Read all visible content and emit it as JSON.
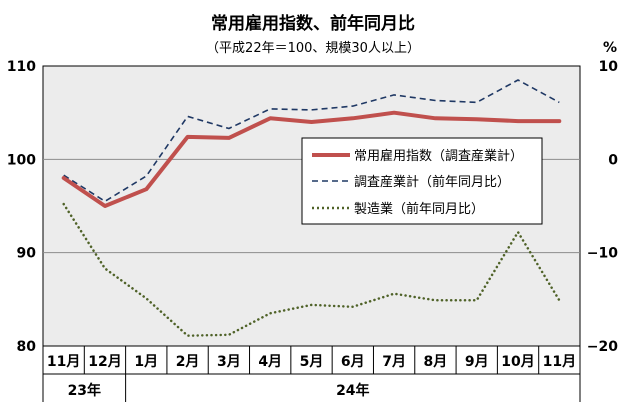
{
  "chart_data": {
    "type": "line",
    "title": "常用雇用指数、前年同月比",
    "subtitle": "（平成22年＝100、規模30人以上）",
    "y_left": {
      "min": 80,
      "max": 110,
      "ticks": [
        "80",
        "90",
        "100",
        "110"
      ]
    },
    "y_right": {
      "min": -20,
      "max": 10,
      "ticks": [
        "−20",
        "−10",
        "0",
        "10"
      ],
      "unit": "%"
    },
    "categories": [
      "11月",
      "12月",
      "1月",
      "2月",
      "3月",
      "4月",
      "5月",
      "6月",
      "7月",
      "8月",
      "9月",
      "10月",
      "11月"
    ],
    "year_labels": [
      {
        "label": "23年",
        "start": 0,
        "end": 1
      },
      {
        "label": "24年",
        "start": 2,
        "end": 12
      }
    ],
    "legend_placement": "right-middle",
    "grid": true,
    "series": [
      {
        "name": "常用雇用指数（調査産業計）",
        "axis": "left",
        "color": "#c0504d",
        "style": "solid",
        "values": [
          98.0,
          95.0,
          96.8,
          102.4,
          102.3,
          104.4,
          104.0,
          104.4,
          105.0,
          104.4,
          104.3,
          104.1,
          104.1
        ]
      },
      {
        "name": "調査産業計（前年同月比）",
        "axis": "right",
        "color": "#1f3864",
        "style": "dashed",
        "values": [
          -1.7,
          -4.5,
          -1.8,
          4.6,
          3.3,
          5.4,
          5.3,
          5.7,
          6.9,
          6.3,
          6.1,
          8.5,
          6.1
        ]
      },
      {
        "name": "製造業（前年同月比）",
        "axis": "right",
        "color": "#4f6228",
        "style": "dotted",
        "values": [
          -4.8,
          -11.7,
          -14.9,
          -18.9,
          -18.8,
          -16.5,
          -15.6,
          -15.8,
          -14.4,
          -15.1,
          -15.1,
          -7.8,
          -15.1
        ]
      }
    ]
  }
}
